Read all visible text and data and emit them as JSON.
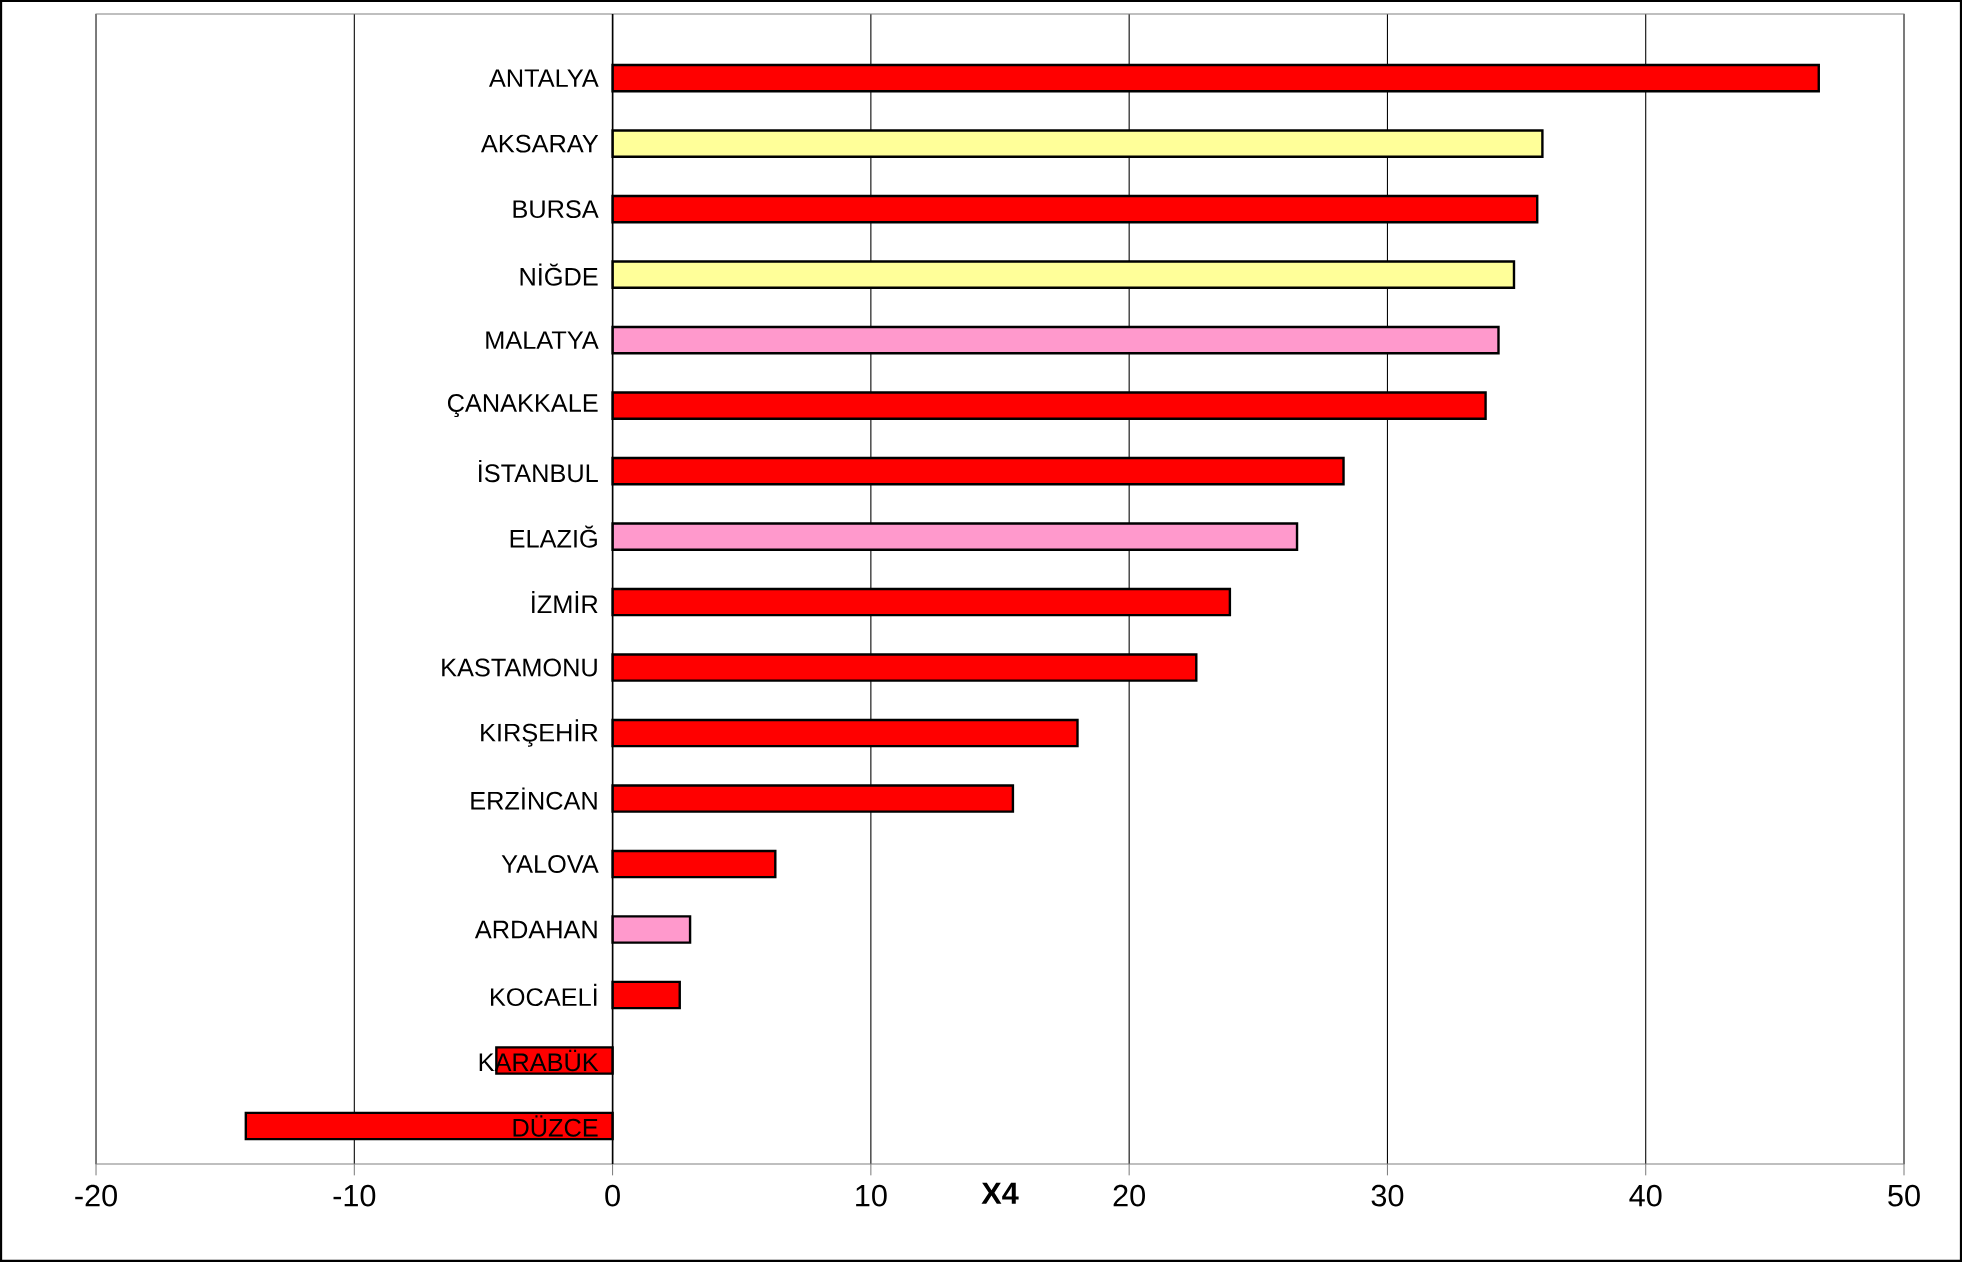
{
  "chart_data": {
    "type": "bar",
    "orientation": "horizontal",
    "xlabel": "X4",
    "categories": [
      "ANTALYA",
      "AKSARAY",
      "BURSA",
      "NİĞDE",
      "MALATYA",
      "ÇANAKKALE",
      "İSTANBUL",
      "ELAZIĞ",
      "İZMİR",
      "KASTAMONU",
      "KIRŞEHİR",
      "ERZİNCAN",
      "YALOVA",
      "ARDAHAN",
      "KOCAELİ",
      "KARABÜK",
      "DÜZCE"
    ],
    "values": [
      46.7,
      36.0,
      35.8,
      34.9,
      34.3,
      33.8,
      28.3,
      26.5,
      23.9,
      22.6,
      18.0,
      15.5,
      6.3,
      3.0,
      2.6,
      -4.5,
      -14.2
    ],
    "colors": [
      "#ff0000",
      "#ffff99",
      "#ff0000",
      "#ffff99",
      "#ff99cc",
      "#ff0000",
      "#ff0000",
      "#ff99cc",
      "#ff0000",
      "#ff0000",
      "#ff0000",
      "#ff0000",
      "#ff0000",
      "#ff99cc",
      "#ff0000",
      "#ff0000",
      "#ff0000"
    ],
    "xlim": [
      -20,
      50
    ],
    "xticks": [
      -20,
      -10,
      0,
      10,
      20,
      30,
      40,
      50
    ],
    "grid": "x"
  }
}
